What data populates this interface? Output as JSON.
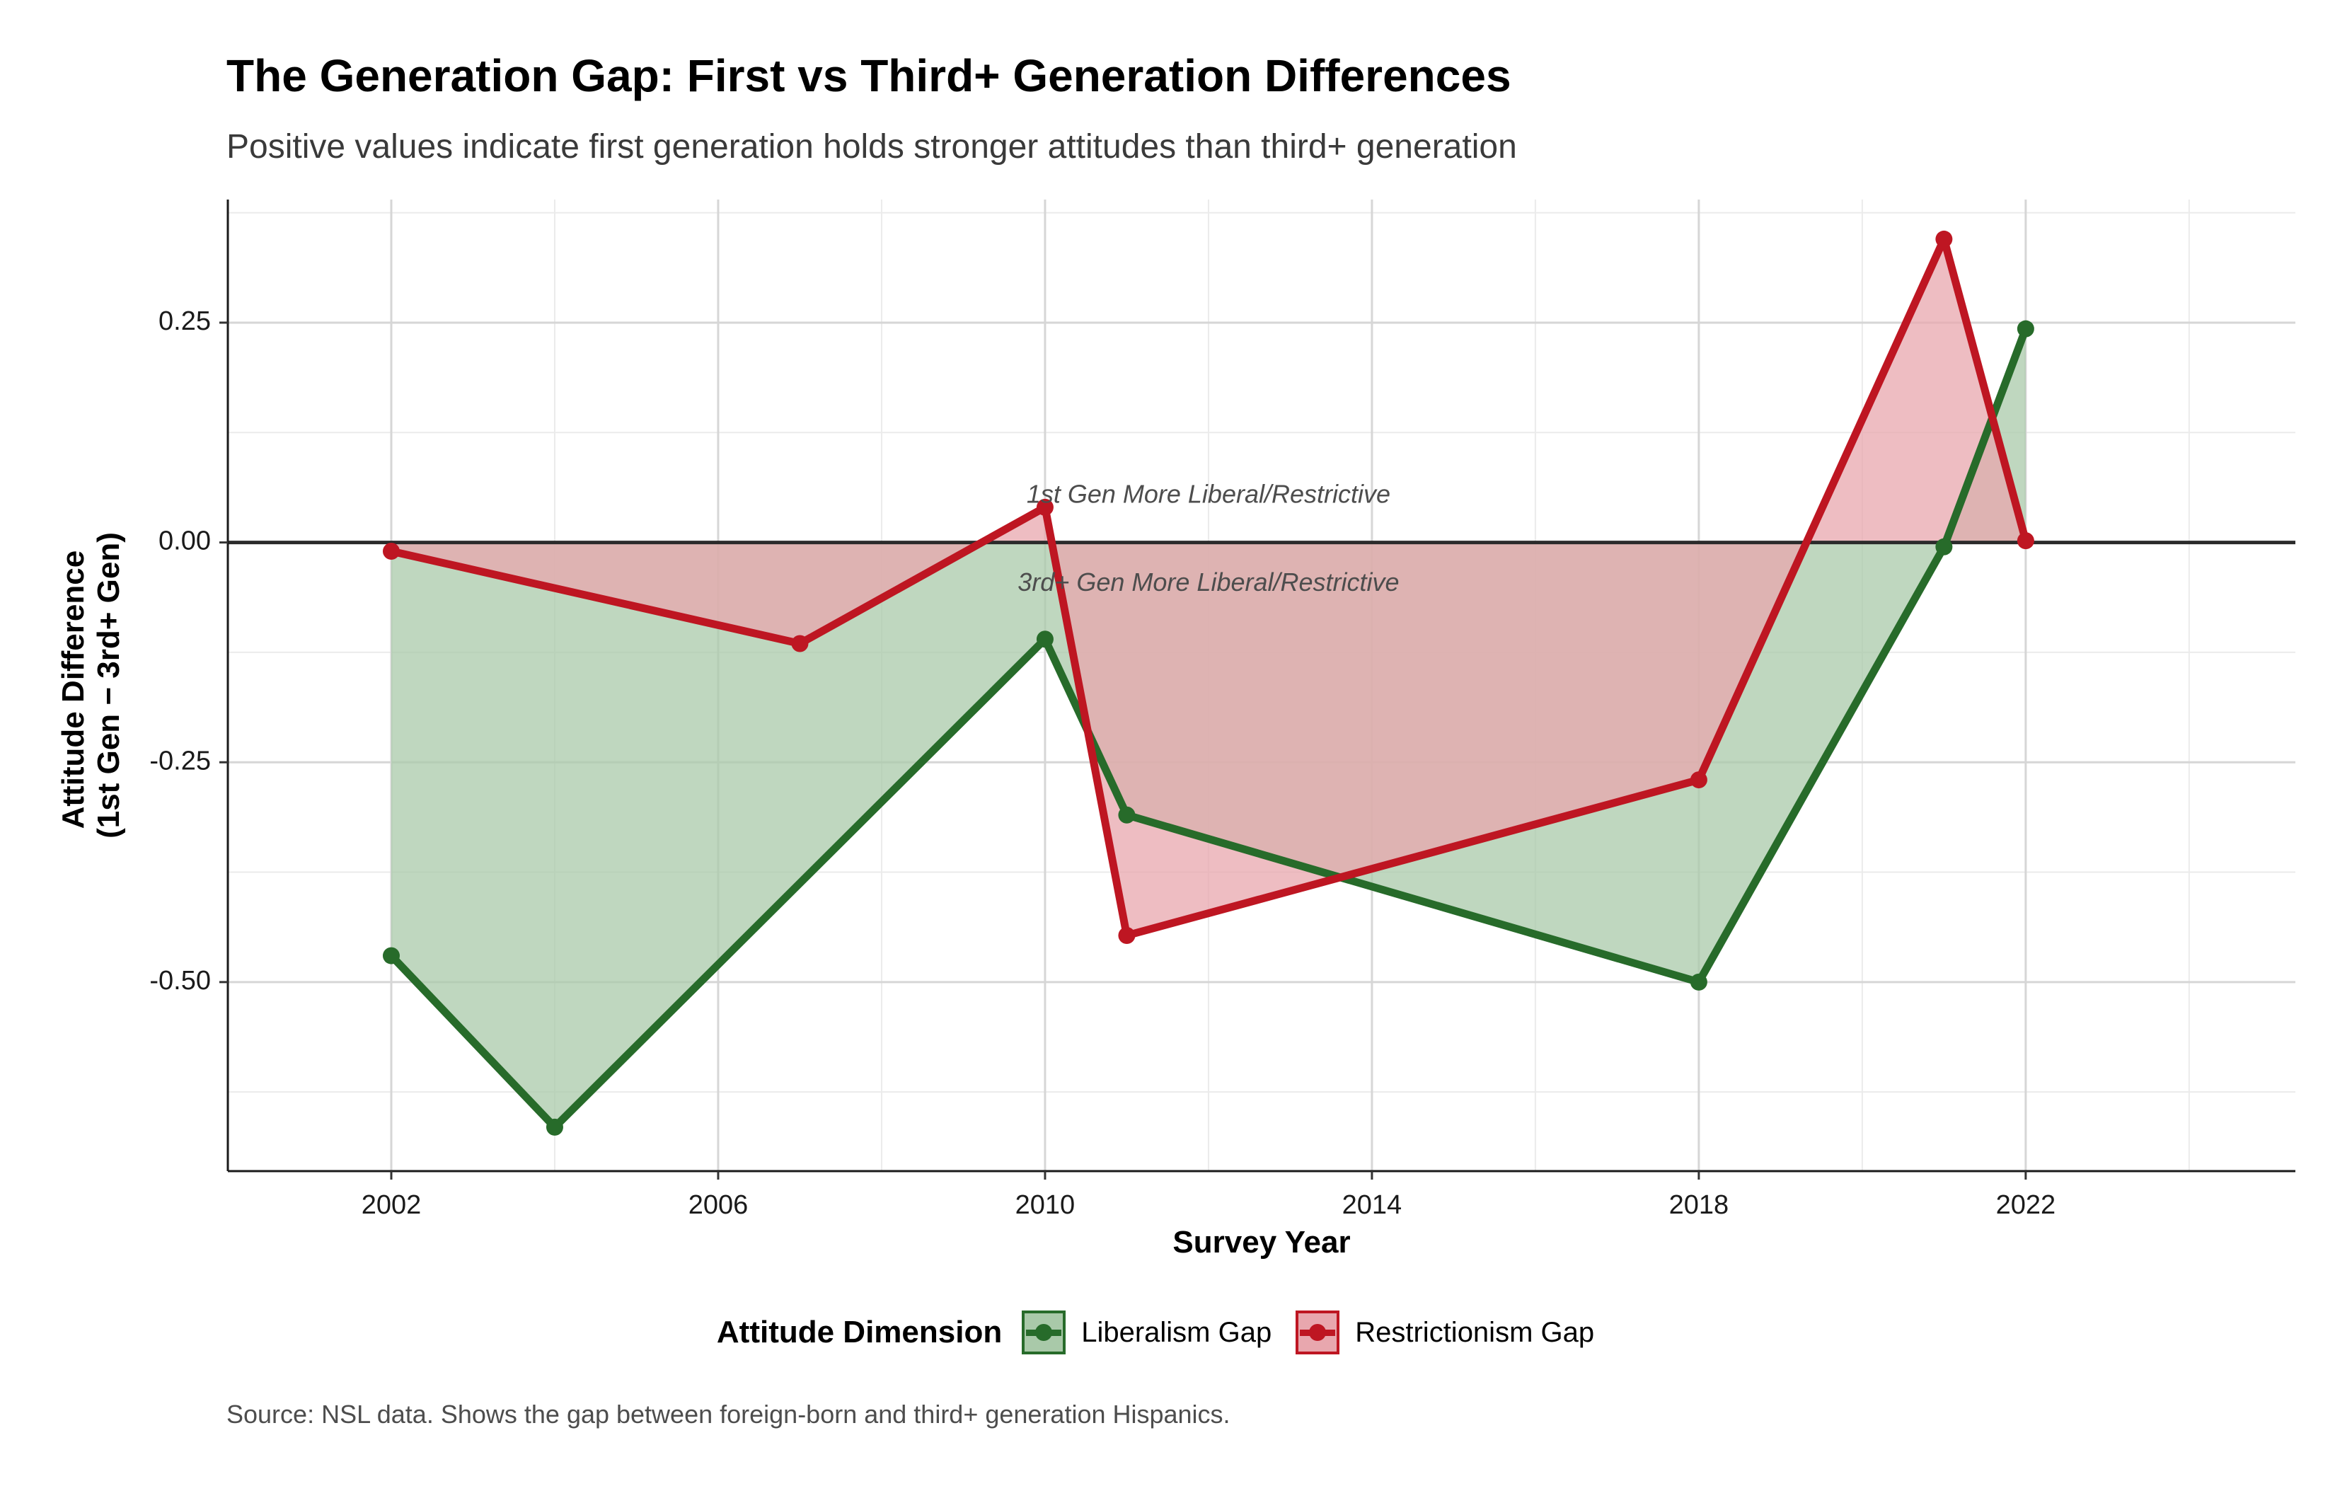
{
  "chart_data": {
    "type": "line",
    "title": "The Generation Gap: First vs Third+ Generation Differences",
    "subtitle": "Positive values indicate first generation holds stronger attitudes than third+ generation",
    "caption": "Source: NSL data. Shows the gap between foreign-born and third+ generation Hispanics.",
    "xlabel": "Survey Year",
    "ylabel_line1": "Attitude Difference",
    "ylabel_line2": "(1st Gen − 3rd+ Gen)",
    "xlim": [
      2000,
      2025.3
    ],
    "ylim": [
      -0.715,
      0.39
    ],
    "x_ticks": [
      2002,
      2006,
      2010,
      2014,
      2018,
      2022
    ],
    "x_tick_labels": [
      "2002",
      "2006",
      "2010",
      "2014",
      "2018",
      "2022"
    ],
    "y_ticks": [
      -0.5,
      -0.25,
      0.0,
      0.25
    ],
    "y_tick_labels": [
      "-0.50",
      "-0.25",
      "0.00",
      "0.25"
    ],
    "grid": true,
    "reference_line_y": 0,
    "legend": {
      "title": "Attitude Dimension",
      "position": "bottom"
    },
    "annotations": [
      {
        "text": "1st Gen More Liberal/Restrictive",
        "x": 2012,
        "y": 0.045
      },
      {
        "text": "3rd+ Gen More Liberal/Restrictive",
        "x": 2012,
        "y": -0.055
      }
    ],
    "series": [
      {
        "name": "Liberalism Gap",
        "color": "#276b2a",
        "fill": "#a9c9a9",
        "x": [
          2002,
          2004,
          2010,
          2011,
          2018,
          2021,
          2022
        ],
        "y": [
          -0.47,
          -0.665,
          -0.11,
          -0.31,
          -0.5,
          -0.005,
          0.243
        ]
      },
      {
        "name": "Restrictionism Gap",
        "color": "#be1622",
        "fill": "#e8a7ae",
        "x": [
          2002,
          2007,
          2010,
          2011,
          2018,
          2021,
          2022
        ],
        "y": [
          -0.01,
          -0.115,
          0.04,
          -0.447,
          -0.27,
          0.345,
          0.002
        ]
      }
    ]
  }
}
